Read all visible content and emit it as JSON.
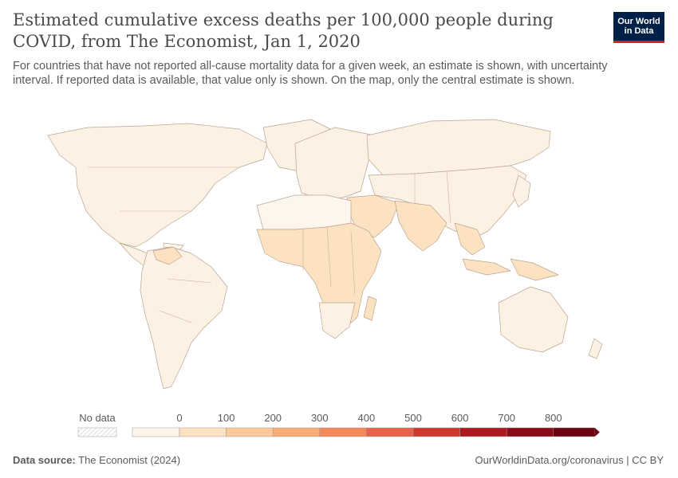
{
  "header": {
    "title": "Estimated cumulative excess deaths per 100,000 people during COVID, from The Economist, Jan 1, 2020",
    "subtitle": "For countries that have not reported all-cause mortality data for a given week, an estimate is shown, with uncertainty interval. If reported data is available, that value only is shown. On the map, only the central estimate is shown."
  },
  "logo": {
    "line1": "Our World",
    "line2": "in Data"
  },
  "legend": {
    "no_data_label": "No data",
    "ticks": [
      "0",
      "100",
      "200",
      "300",
      "400",
      "500",
      "600",
      "700",
      "800"
    ],
    "colors": [
      "#fef4ea",
      "#fde2c2",
      "#fcc99a",
      "#f9ac76",
      "#f48a5a",
      "#e8634a",
      "#cf3a2f",
      "#ad1820",
      "#8a0b17",
      "#6b0010"
    ]
  },
  "map_colors": {
    "low": "#fdf1e4",
    "mid": "#fde2c2",
    "border": "#b9a593"
  },
  "footer": {
    "source_label": "Data source:",
    "source_value": "The Economist (2024)",
    "right": "OurWorldinData.org/coronavirus | CC BY"
  }
}
